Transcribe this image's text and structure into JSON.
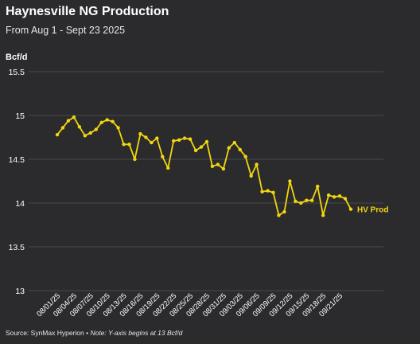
{
  "title": "Haynesville NG Production",
  "subtitle": "From Aug 1 - Sept 23 2025",
  "footer": {
    "source": "Source: SynMax Hyperion",
    "separator": " • ",
    "note": "Note: Y-axis begins at 13 Bcf/d"
  },
  "colors": {
    "background": "#2b2b2d",
    "series": "#f2d60f",
    "grid": "#4a4a4c",
    "text": "#ffffff"
  },
  "chart_data": {
    "type": "line",
    "title": "Haynesville NG Production",
    "subtitle": "From Aug 1 - Sept 23 2025",
    "xlabel": "",
    "ylabel": "Bcf/d",
    "ylim": [
      13,
      15.5
    ],
    "yticks": [
      "13",
      "13.5",
      "14",
      "14.5",
      "15",
      "15.5"
    ],
    "grid": true,
    "legend": "end-of-line label",
    "x": [
      "08/01/25",
      "08/02/25",
      "08/03/25",
      "08/04/25",
      "08/05/25",
      "08/06/25",
      "08/07/25",
      "08/08/25",
      "08/09/25",
      "08/10/25",
      "08/11/25",
      "08/12/25",
      "08/13/25",
      "08/14/25",
      "08/15/25",
      "08/16/25",
      "08/17/25",
      "08/18/25",
      "08/19/25",
      "08/20/25",
      "08/21/25",
      "08/22/25",
      "08/23/25",
      "08/24/25",
      "08/25/25",
      "08/26/25",
      "08/27/25",
      "08/28/25",
      "08/29/25",
      "08/30/25",
      "08/31/25",
      "09/01/25",
      "09/02/25",
      "09/03/25",
      "09/04/25",
      "09/05/25",
      "09/06/25",
      "09/07/25",
      "09/08/25",
      "09/09/25",
      "09/10/25",
      "09/11/25",
      "09/12/25",
      "09/13/25",
      "09/14/25",
      "09/15/25",
      "09/16/25",
      "09/17/25",
      "09/18/25",
      "09/19/25",
      "09/20/25",
      "09/21/25",
      "09/22/25",
      "09/23/25"
    ],
    "xtick_labels": [
      "08/01/25",
      "08/04/25",
      "08/07/25",
      "08/10/25",
      "08/13/25",
      "08/16/25",
      "08/19/25",
      "08/22/25",
      "08/25/25",
      "08/28/25",
      "08/31/25",
      "09/03/25",
      "09/06/25",
      "09/09/25",
      "09/12/25",
      "09/15/25",
      "09/18/25",
      "09/21/25"
    ],
    "series": [
      {
        "name": "HV Prod",
        "values": [
          14.78,
          14.86,
          14.94,
          14.98,
          14.87,
          14.77,
          14.8,
          14.84,
          14.92,
          14.95,
          14.93,
          14.86,
          14.67,
          14.67,
          14.5,
          14.79,
          14.75,
          14.69,
          14.74,
          14.53,
          14.4,
          14.71,
          14.72,
          14.74,
          14.73,
          14.6,
          14.64,
          14.7,
          14.42,
          14.44,
          14.39,
          14.63,
          14.69,
          14.61,
          14.53,
          14.31,
          14.44,
          14.13,
          14.14,
          14.12,
          13.86,
          13.9,
          14.25,
          14.02,
          14.0,
          14.03,
          14.03,
          14.19,
          13.86,
          14.09,
          14.07,
          14.08,
          14.05,
          13.93
        ]
      }
    ]
  }
}
